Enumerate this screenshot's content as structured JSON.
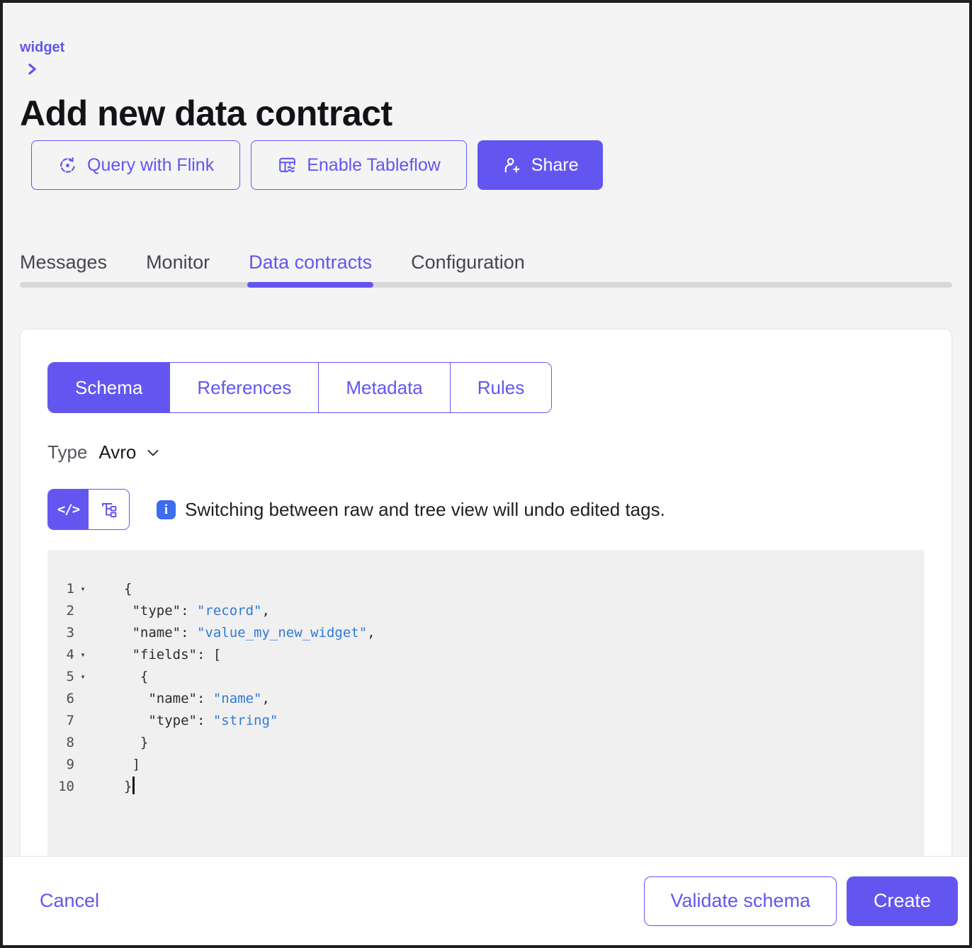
{
  "page": {
    "breadcrumb": "widget",
    "title": "Add new data contract"
  },
  "actions": {
    "query_flink": "Query with Flink",
    "enable_tableflow": "Enable Tableflow",
    "share": "Share"
  },
  "tabs": [
    {
      "label": "Messages",
      "active": false
    },
    {
      "label": "Monitor",
      "active": false
    },
    {
      "label": "Data contracts",
      "active": true
    },
    {
      "label": "Configuration",
      "active": false
    }
  ],
  "contract_tabs": [
    {
      "label": "Schema",
      "active": true
    },
    {
      "label": "References",
      "active": false
    },
    {
      "label": "Metadata",
      "active": false
    },
    {
      "label": "Rules",
      "active": false
    }
  ],
  "type_selector": {
    "label": "Type",
    "value": "Avro"
  },
  "view_toggle": {
    "raw_glyph": "</>",
    "info_note": "Switching between raw and tree view will undo edited tags."
  },
  "editor": {
    "fold_marker": "▾",
    "lines": [
      {
        "n": "1",
        "fold": true,
        "parts": [
          {
            "t": "{",
            "c": "pl"
          }
        ]
      },
      {
        "n": "2",
        "fold": false,
        "parts": [
          {
            "t": " \"type\": ",
            "c": "pl"
          },
          {
            "t": "\"record\"",
            "c": "st"
          },
          {
            "t": ",",
            "c": "pl"
          }
        ]
      },
      {
        "n": "3",
        "fold": false,
        "parts": [
          {
            "t": " \"name\": ",
            "c": "pl"
          },
          {
            "t": "\"value_my_new_widget\"",
            "c": "st"
          },
          {
            "t": ",",
            "c": "pl"
          }
        ]
      },
      {
        "n": "4",
        "fold": true,
        "parts": [
          {
            "t": " \"fields\": [",
            "c": "pl"
          }
        ]
      },
      {
        "n": "5",
        "fold": true,
        "parts": [
          {
            "t": "  {",
            "c": "pl"
          }
        ]
      },
      {
        "n": "6",
        "fold": false,
        "parts": [
          {
            "t": "   \"name\": ",
            "c": "pl"
          },
          {
            "t": "\"name\"",
            "c": "st"
          },
          {
            "t": ",",
            "c": "pl"
          }
        ]
      },
      {
        "n": "7",
        "fold": false,
        "parts": [
          {
            "t": "   \"type\": ",
            "c": "pl"
          },
          {
            "t": "\"string\"",
            "c": "st"
          }
        ]
      },
      {
        "n": "8",
        "fold": false,
        "parts": [
          {
            "t": "  }",
            "c": "pl"
          }
        ]
      },
      {
        "n": "9",
        "fold": false,
        "parts": [
          {
            "t": " ]",
            "c": "pl"
          }
        ]
      },
      {
        "n": "10",
        "fold": false,
        "caret": true,
        "parts": [
          {
            "t": "}",
            "c": "pl"
          }
        ]
      }
    ]
  },
  "footer": {
    "cancel": "Cancel",
    "validate": "Validate schema",
    "create": "Create"
  },
  "colors": {
    "accent": "#6356f0",
    "info_blue": "#3c6cf0",
    "code_string_blue": "#2e7bd4",
    "editor_background": "#f0f0f1",
    "page_background": "#f4f4f5",
    "tab_track": "#d8d8dc"
  }
}
